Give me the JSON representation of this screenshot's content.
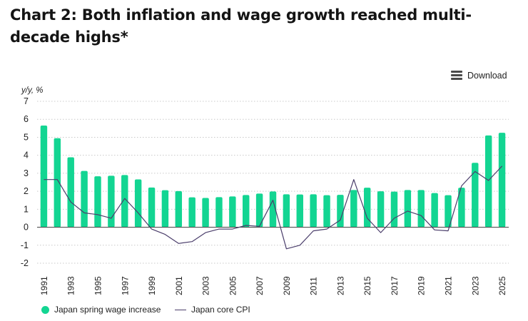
{
  "title": "Chart 2: Both inflation and wage growth reached multi-decade highs*",
  "download_label": "Download",
  "colors": {
    "bar": "#13d592",
    "line": "#4b3e6b",
    "grid": "#c9c9c9",
    "axis": "#333333"
  },
  "chart_data": {
    "type": "bar",
    "ylabel": "y/y, %",
    "ylim": [
      -2,
      7
    ],
    "yticks": [
      7,
      6,
      5,
      4,
      3,
      2,
      1,
      0,
      -1,
      -2
    ],
    "categories": [
      "1991",
      "1992",
      "1993",
      "1994",
      "1995",
      "1996",
      "1997",
      "1998",
      "1999",
      "2000",
      "2001",
      "2002",
      "2003",
      "2004",
      "2005",
      "2006",
      "2007",
      "2008",
      "2009",
      "2010",
      "2011",
      "2012",
      "2013",
      "2014",
      "2015",
      "2016",
      "2017",
      "2018",
      "2019",
      "2020",
      "2021",
      "2022",
      "2023",
      "2024",
      "2025"
    ],
    "xtick_labels": [
      "1991",
      "1993",
      "1995",
      "1997",
      "1999",
      "2001",
      "2003",
      "2005",
      "2007",
      "2009",
      "2011",
      "2013",
      "2015",
      "2017",
      "2019",
      "2021",
      "2023",
      "2025"
    ],
    "series": [
      {
        "name": "Japan spring wage increase",
        "type": "bar",
        "values": [
          5.65,
          4.95,
          3.89,
          3.13,
          2.83,
          2.86,
          2.9,
          2.66,
          2.21,
          2.06,
          2.01,
          1.66,
          1.63,
          1.67,
          1.71,
          1.79,
          1.87,
          1.99,
          1.83,
          1.82,
          1.83,
          1.78,
          1.8,
          2.07,
          2.2,
          2.0,
          1.98,
          2.07,
          2.07,
          1.9,
          1.78,
          2.2,
          3.58,
          5.1,
          5.25
        ]
      },
      {
        "name": "Japan core CPI",
        "type": "line",
        "values": [
          2.65,
          2.65,
          1.4,
          0.8,
          0.7,
          0.5,
          1.6,
          0.8,
          -0.1,
          -0.4,
          -0.9,
          -0.8,
          -0.3,
          -0.1,
          -0.1,
          0.1,
          0.05,
          1.5,
          -1.2,
          -1.0,
          -0.2,
          -0.1,
          0.4,
          2.65,
          0.5,
          -0.3,
          0.5,
          0.9,
          0.65,
          -0.15,
          -0.2,
          2.3,
          3.1,
          2.6,
          3.4
        ]
      }
    ],
    "legend": [
      "Japan spring wage increase",
      "Japan core CPI"
    ]
  }
}
